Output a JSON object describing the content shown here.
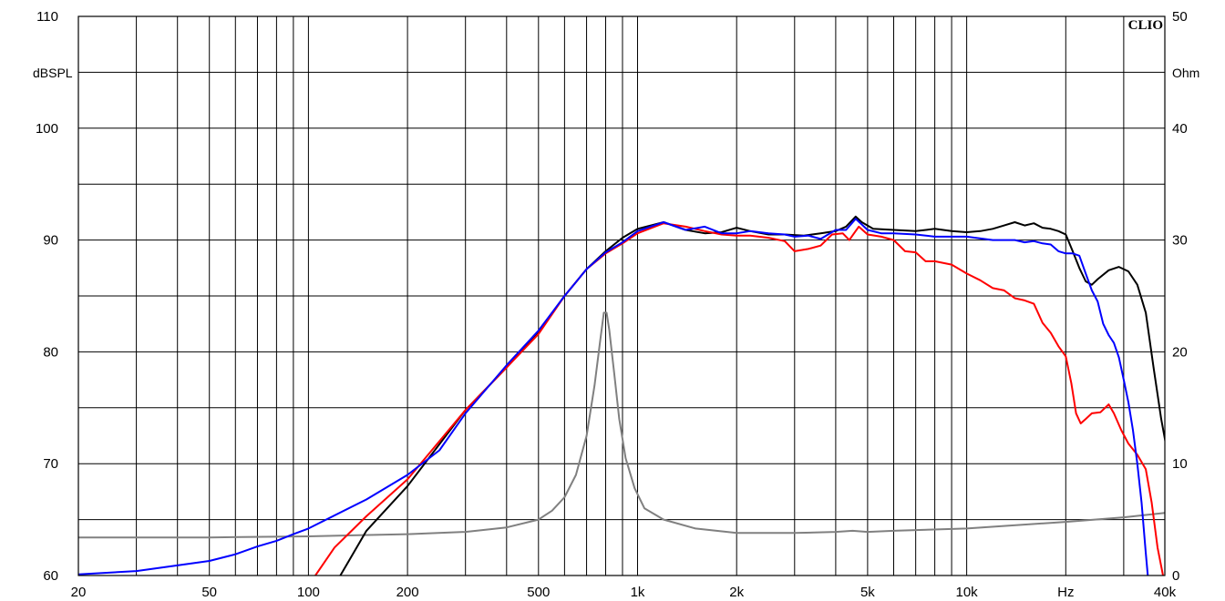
{
  "chart_data": {
    "type": "line",
    "brand": "CLIO",
    "x_scale": "log",
    "xlim": [
      20,
      40000
    ],
    "ylim": [
      60,
      110
    ],
    "y2lim": [
      0,
      50
    ],
    "y_unit": "dBSPL",
    "y2_unit": "Ohm",
    "x_unit_label": "Hz",
    "grid": true,
    "x_grid_values": [
      20,
      30,
      40,
      50,
      60,
      70,
      80,
      90,
      100,
      200,
      300,
      400,
      500,
      600,
      700,
      800,
      900,
      1000,
      2000,
      3000,
      4000,
      5000,
      6000,
      7000,
      8000,
      9000,
      10000,
      20000,
      30000,
      40000
    ],
    "y_grid_values": [
      60,
      65,
      70,
      75,
      80,
      85,
      90,
      95,
      100,
      105,
      110
    ],
    "x_tick_labels": [
      {
        "value": 20,
        "label": "20"
      },
      {
        "value": 50,
        "label": "50"
      },
      {
        "value": 100,
        "label": "100"
      },
      {
        "value": 200,
        "label": "200"
      },
      {
        "value": 500,
        "label": "500"
      },
      {
        "value": 1000,
        "label": "1k"
      },
      {
        "value": 2000,
        "label": "2k"
      },
      {
        "value": 5000,
        "label": "5k"
      },
      {
        "value": 10000,
        "label": "10k"
      },
      {
        "value": 20000,
        "label": "Hz"
      },
      {
        "value": 40000,
        "label": "40k"
      }
    ],
    "y_tick_labels": [
      {
        "value": 110,
        "label": "110"
      },
      {
        "value": 100,
        "label": "100"
      },
      {
        "value": 90,
        "label": "90"
      },
      {
        "value": 80,
        "label": "80"
      },
      {
        "value": 70,
        "label": "70"
      },
      {
        "value": 60,
        "label": "60"
      }
    ],
    "y2_tick_labels": [
      {
        "value": 50,
        "label": "50"
      },
      {
        "value": 40,
        "label": "40"
      },
      {
        "value": 30,
        "label": "30"
      },
      {
        "value": 20,
        "label": "20"
      },
      {
        "value": 10,
        "label": "10"
      },
      {
        "value": 0,
        "label": "0"
      }
    ],
    "series": [
      {
        "color": "#000000",
        "axis": "left",
        "points": [
          [
            125,
            60
          ],
          [
            150,
            64
          ],
          [
            200,
            68
          ],
          [
            300,
            74.8
          ],
          [
            400,
            78.6
          ],
          [
            500,
            81.8
          ],
          [
            600,
            85
          ],
          [
            700,
            87.4
          ],
          [
            800,
            89
          ],
          [
            900,
            90.2
          ],
          [
            1000,
            91
          ],
          [
            1200,
            91.6
          ],
          [
            1400,
            90.9
          ],
          [
            1600,
            90.6
          ],
          [
            1800,
            90.7
          ],
          [
            2000,
            91.1
          ],
          [
            2200,
            90.8
          ],
          [
            2500,
            90.5
          ],
          [
            2800,
            90.5
          ],
          [
            3200,
            90.4
          ],
          [
            3600,
            90.6
          ],
          [
            4000,
            90.8
          ],
          [
            4300,
            91.2
          ],
          [
            4600,
            92.1
          ],
          [
            4800,
            91.6
          ],
          [
            5200,
            91.0
          ],
          [
            6000,
            90.9
          ],
          [
            7000,
            90.8
          ],
          [
            8000,
            91.0
          ],
          [
            9000,
            90.8
          ],
          [
            10000,
            90.7
          ],
          [
            11000,
            90.8
          ],
          [
            12000,
            91.0
          ],
          [
            13000,
            91.3
          ],
          [
            14000,
            91.6
          ],
          [
            15000,
            91.3
          ],
          [
            16000,
            91.5
          ],
          [
            17000,
            91.1
          ],
          [
            18000,
            91.0
          ],
          [
            19000,
            90.8
          ],
          [
            20000,
            90.5
          ],
          [
            21000,
            89.0
          ],
          [
            22000,
            87.5
          ],
          [
            23000,
            86.3
          ],
          [
            24000,
            86.0
          ],
          [
            25000,
            86.5
          ],
          [
            27000,
            87.3
          ],
          [
            29000,
            87.6
          ],
          [
            31000,
            87.2
          ],
          [
            33000,
            86.0
          ],
          [
            35000,
            83.5
          ],
          [
            37000,
            78.5
          ],
          [
            39000,
            74.0
          ],
          [
            41000,
            70.5
          ]
        ]
      },
      {
        "color": "#ff0000",
        "axis": "left",
        "points": [
          [
            105,
            60
          ],
          [
            120,
            62.5
          ],
          [
            150,
            65.3
          ],
          [
            200,
            68.6
          ],
          [
            300,
            74.8
          ],
          [
            400,
            78.6
          ],
          [
            500,
            81.6
          ],
          [
            600,
            85
          ],
          [
            700,
            87.4
          ],
          [
            800,
            88.8
          ],
          [
            900,
            89.7
          ],
          [
            1000,
            90.6
          ],
          [
            1200,
            91.5
          ],
          [
            1400,
            91.2
          ],
          [
            1600,
            90.8
          ],
          [
            1800,
            90.5
          ],
          [
            2000,
            90.4
          ],
          [
            2200,
            90.4
          ],
          [
            2500,
            90.2
          ],
          [
            2800,
            89.9
          ],
          [
            3000,
            89.0
          ],
          [
            3300,
            89.2
          ],
          [
            3600,
            89.5
          ],
          [
            3900,
            90.5
          ],
          [
            4200,
            90.6
          ],
          [
            4400,
            90.0
          ],
          [
            4700,
            91.2
          ],
          [
            5000,
            90.5
          ],
          [
            5500,
            90.3
          ],
          [
            6000,
            90.0
          ],
          [
            6500,
            89.0
          ],
          [
            7000,
            88.9
          ],
          [
            7500,
            88.1
          ],
          [
            8000,
            88.1
          ],
          [
            9000,
            87.8
          ],
          [
            10000,
            87.0
          ],
          [
            11000,
            86.4
          ],
          [
            12000,
            85.7
          ],
          [
            13000,
            85.5
          ],
          [
            14000,
            84.8
          ],
          [
            15000,
            84.6
          ],
          [
            16000,
            84.3
          ],
          [
            17000,
            82.6
          ],
          [
            18000,
            81.7
          ],
          [
            19000,
            80.5
          ],
          [
            20000,
            79.6
          ],
          [
            20800,
            77.2
          ],
          [
            21500,
            74.5
          ],
          [
            22200,
            73.6
          ],
          [
            23000,
            74.0
          ],
          [
            24000,
            74.5
          ],
          [
            25500,
            74.6
          ],
          [
            27000,
            75.3
          ],
          [
            28000,
            74.5
          ],
          [
            29500,
            73.0
          ],
          [
            31000,
            71.8
          ],
          [
            33000,
            70.8
          ],
          [
            35000,
            69.5
          ],
          [
            36500,
            66.5
          ],
          [
            38000,
            62.5
          ],
          [
            39500,
            60
          ]
        ]
      },
      {
        "color": "#0000ff",
        "axis": "left",
        "points": [
          [
            20,
            60.1
          ],
          [
            30,
            60.4
          ],
          [
            40,
            60.9
          ],
          [
            50,
            61.3
          ],
          [
            60,
            61.9
          ],
          [
            70,
            62.6
          ],
          [
            80,
            63.1
          ],
          [
            90,
            63.7
          ],
          [
            100,
            64.2
          ],
          [
            150,
            66.8
          ],
          [
            200,
            69.0
          ],
          [
            250,
            71.2
          ],
          [
            300,
            74.5
          ],
          [
            400,
            78.8
          ],
          [
            500,
            81.9
          ],
          [
            600,
            85
          ],
          [
            700,
            87.4
          ],
          [
            800,
            88.9
          ],
          [
            900,
            89.8
          ],
          [
            1000,
            90.8
          ],
          [
            1200,
            91.6
          ],
          [
            1400,
            90.9
          ],
          [
            1600,
            91.2
          ],
          [
            1800,
            90.6
          ],
          [
            2000,
            90.6
          ],
          [
            2200,
            90.8
          ],
          [
            2500,
            90.6
          ],
          [
            2800,
            90.5
          ],
          [
            3000,
            90.3
          ],
          [
            3300,
            90.4
          ],
          [
            3600,
            90.1
          ],
          [
            4000,
            90.9
          ],
          [
            4300,
            90.9
          ],
          [
            4600,
            91.9
          ],
          [
            5000,
            90.9
          ],
          [
            5500,
            90.6
          ],
          [
            6000,
            90.6
          ],
          [
            7000,
            90.5
          ],
          [
            8000,
            90.3
          ],
          [
            10000,
            90.3
          ],
          [
            12000,
            90.0
          ],
          [
            14000,
            90.0
          ],
          [
            15000,
            89.8
          ],
          [
            16000,
            89.9
          ],
          [
            17000,
            89.7
          ],
          [
            18000,
            89.6
          ],
          [
            19000,
            89.0
          ],
          [
            20000,
            88.8
          ],
          [
            21000,
            88.8
          ],
          [
            22000,
            88.6
          ],
          [
            23000,
            87.0
          ],
          [
            24000,
            85.5
          ],
          [
            25000,
            84.5
          ],
          [
            26000,
            82.5
          ],
          [
            27000,
            81.5
          ],
          [
            28000,
            80.8
          ],
          [
            29000,
            79.5
          ],
          [
            30000,
            77.5
          ],
          [
            31000,
            75.5
          ],
          [
            32000,
            73.0
          ],
          [
            33000,
            70.0
          ],
          [
            34000,
            66.5
          ],
          [
            35000,
            62.0
          ],
          [
            35500,
            60
          ]
        ]
      },
      {
        "color": "#808080",
        "axis": "right",
        "points": [
          [
            20,
            3.4
          ],
          [
            50,
            3.4
          ],
          [
            100,
            3.5
          ],
          [
            200,
            3.7
          ],
          [
            300,
            3.9
          ],
          [
            400,
            4.3
          ],
          [
            500,
            5.0
          ],
          [
            550,
            5.8
          ],
          [
            600,
            7.0
          ],
          [
            650,
            9.0
          ],
          [
            700,
            12.5
          ],
          [
            740,
            17.0
          ],
          [
            770,
            21.0
          ],
          [
            790,
            23.5
          ],
          [
            805,
            23.5
          ],
          [
            820,
            22.0
          ],
          [
            850,
            18.0
          ],
          [
            880,
            14.0
          ],
          [
            920,
            10.5
          ],
          [
            980,
            7.8
          ],
          [
            1050,
            6.0
          ],
          [
            1200,
            5.0
          ],
          [
            1500,
            4.2
          ],
          [
            2000,
            3.8
          ],
          [
            3000,
            3.8
          ],
          [
            4000,
            3.9
          ],
          [
            4500,
            4.0
          ],
          [
            5000,
            3.9
          ],
          [
            6000,
            4.0
          ],
          [
            10000,
            4.2
          ],
          [
            20000,
            4.8
          ],
          [
            30000,
            5.2
          ],
          [
            40000,
            5.6
          ]
        ]
      }
    ]
  }
}
